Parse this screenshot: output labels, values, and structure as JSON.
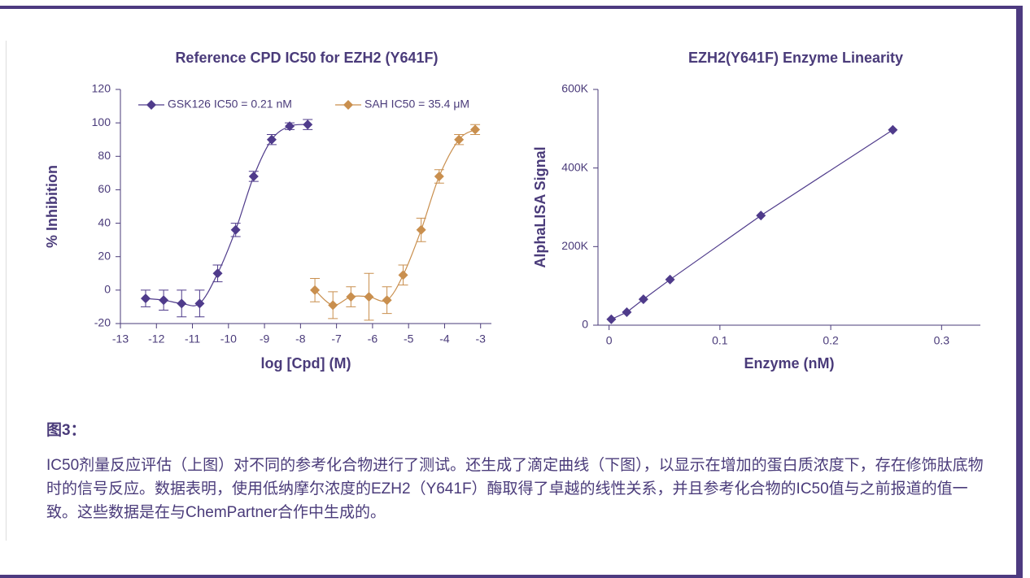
{
  "chart_data": [
    {
      "type": "scatter",
      "title": "Reference CPD IC50 for EZH2 (Y641F)",
      "xlabel": "log [Cpd] (M)",
      "ylabel": "% Inhibition",
      "xlim": [
        -13,
        -2.7
      ],
      "xticks": [
        -13,
        -12,
        -11,
        -10,
        -9,
        -8,
        -7,
        -6,
        -5,
        -4,
        -3
      ],
      "ylim": [
        -20,
        120
      ],
      "yticks": [
        -20,
        0,
        20,
        40,
        60,
        80,
        100,
        120
      ],
      "legend": "top",
      "series": [
        {
          "name": "GSK126 IC50 = 0.21 nM",
          "color": "#4f3b8b",
          "x": [
            -12.3,
            -11.8,
            -11.3,
            -10.8,
            -10.3,
            -9.8,
            -9.3,
            -8.8,
            -8.3,
            -7.8
          ],
          "values": [
            -5,
            -6,
            -8,
            -8,
            10,
            36,
            68,
            90,
            98,
            99
          ],
          "errors": [
            5,
            6,
            8,
            8,
            5,
            4,
            3,
            3,
            2,
            3
          ]
        },
        {
          "name": "SAH IC50 = 35.4 μM",
          "color": "#c98f4e",
          "x": [
            -7.6,
            -7.1,
            -6.6,
            -6.1,
            -5.6,
            -5.15,
            -4.65,
            -4.15,
            -3.6,
            -3.15
          ],
          "values": [
            0,
            -9,
            -4,
            -4,
            -6,
            9,
            36,
            68,
            90,
            96
          ],
          "errors": [
            7,
            8,
            6,
            14,
            8,
            6,
            7,
            4,
            3,
            3
          ]
        }
      ]
    },
    {
      "type": "line",
      "title": "EZH2(Y641F) Enzyme Linearity",
      "xlabel": "Enzyme (nM)",
      "ylabel": "AlphaLISA Signal",
      "xlim": [
        -0.01,
        0.335
      ],
      "xticks": [
        0,
        0.1,
        0.2,
        0.3
      ],
      "ylim": [
        0,
        600000
      ],
      "yticks": [
        0,
        {
          "value": 200000,
          "label": "200K"
        },
        {
          "value": 400000,
          "label": "400K"
        },
        {
          "value": 600000,
          "label": "600K"
        }
      ],
      "series": [
        {
          "color": "#4f3b8b",
          "x": [
            0.002,
            0.016,
            0.031,
            0.055,
            0.137,
            0.256
          ],
          "values": [
            15000,
            33000,
            66000,
            116000,
            279000,
            497000
          ]
        }
      ]
    }
  ],
  "figure_label": "图3：",
  "caption": "IC50剂量反应评估（上图）对不同的参考化合物进行了测试。还生成了滴定曲线（下图），以显示在增加的蛋白质浓度下，存在修饰肽底物时的信号反应。数据表明，使用低纳摩尔浓度的EZH2（Y641F）酶取得了卓越的线性关系，并且参考化合物的IC50值与之前报道的值一致。这些数据是在与ChemPartner合作中生成的。"
}
